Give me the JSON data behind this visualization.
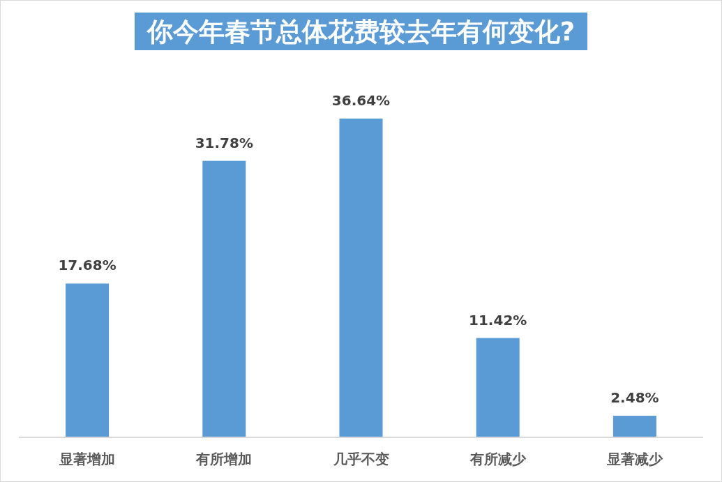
{
  "chart_data": {
    "type": "bar",
    "title": "你今年春节总体花费较去年有何变化?",
    "categories": [
      "显著增加",
      "有所增加",
      "几乎不变",
      "有所减少",
      "显著减少"
    ],
    "values": [
      17.68,
      31.78,
      36.64,
      11.42,
      2.48
    ],
    "color": "#5b9bd5",
    "value_labels": [
      "17.68%",
      "31.78%",
      "36.64%",
      "11.42%",
      "2.48%"
    ]
  }
}
